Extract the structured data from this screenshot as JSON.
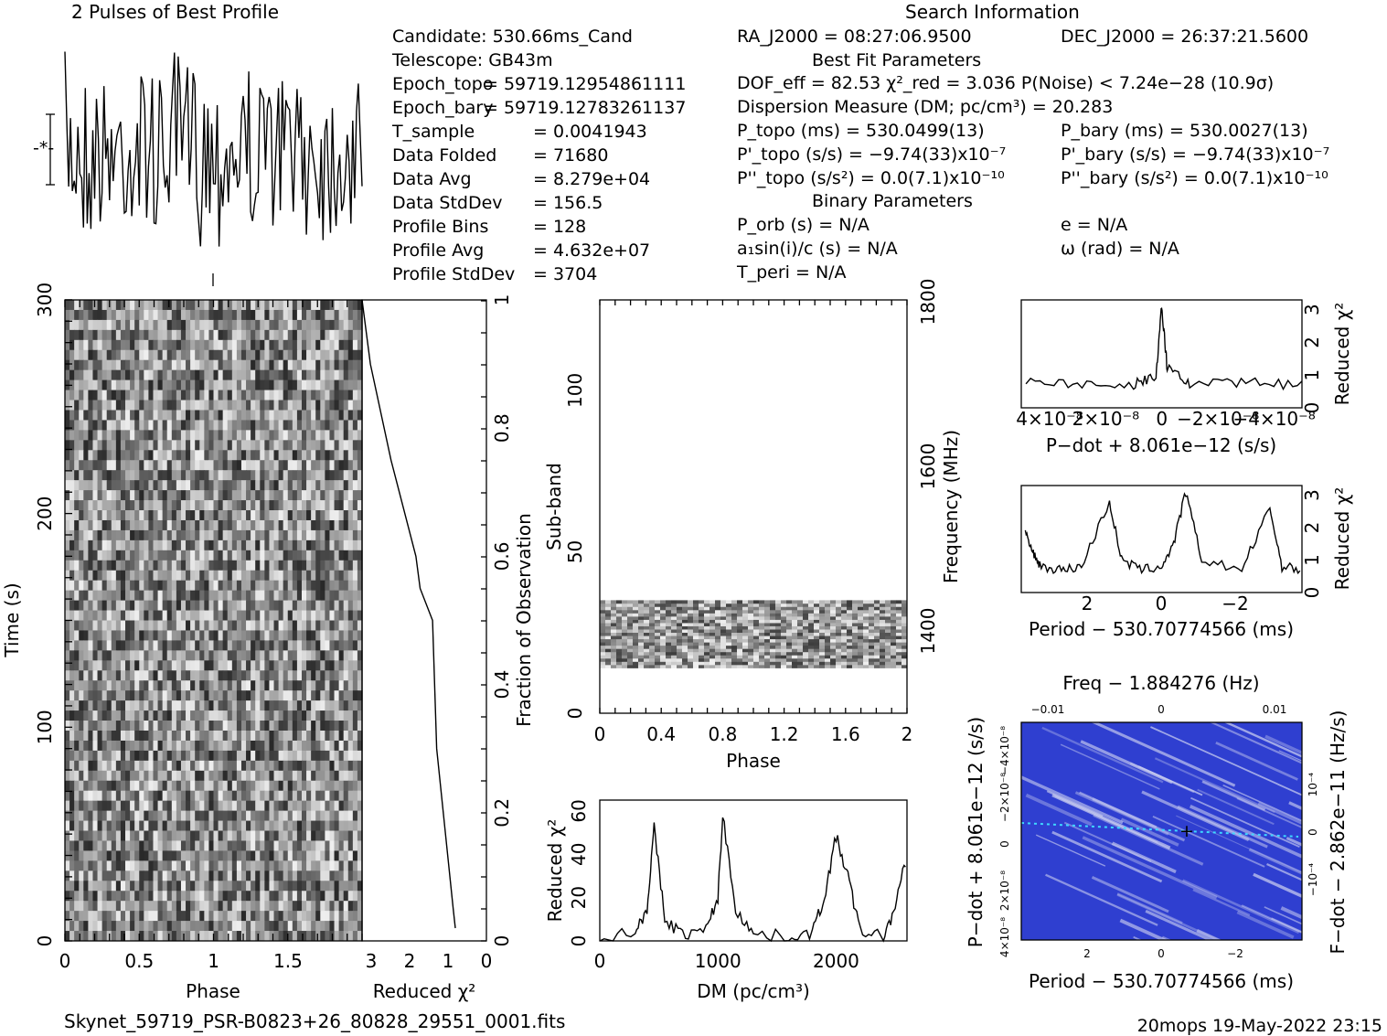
{
  "header": {
    "pulses_title": "2 Pulses of Best Profile",
    "search_title": "Search Information",
    "best_fit_title": "Best Fit Parameters",
    "binary_title": "Binary Parameters"
  },
  "info_left": [
    {
      "label": "Candidate:  530.66ms_Cand",
      "value": ""
    },
    {
      "label": "Telescope:  GB43m",
      "value": ""
    },
    {
      "label": "Epoch_topo",
      "value": "= 59719.12954861111"
    },
    {
      "label": "Epoch_bary",
      "value": "= 59719.12783261137"
    },
    {
      "label": "T_sample",
      "value": "=  0.0041943"
    },
    {
      "label": "Data Folded",
      "value": "=  71680"
    },
    {
      "label": "Data Avg",
      "value": "=  8.279e+04"
    },
    {
      "label": "Data StdDev",
      "value": "=  156.5"
    },
    {
      "label": "Profile Bins",
      "value": "=  128"
    },
    {
      "label": "Profile Avg",
      "value": "=  4.632e+07"
    },
    {
      "label": "Profile StdDev",
      "value": "=  3704"
    }
  ],
  "info_mid": {
    "ra": "RA_J2000 = 08:27:06.9500",
    "dec": "DEC_J2000 = 26:37:21.5600",
    "dof": "DOF_eff = 82.53  χ²_red = 3.036  P(Noise) < 7.24e−28  (10.9σ)",
    "dm": "Dispersion Measure (DM; pc/cm³) = 20.283",
    "p_topo": "P_topo (ms) =  530.0499(13)",
    "p_bary": "P_bary (ms) =  530.0027(13)",
    "pd_topo": "P'_topo (s/s) = −9.74(33)x10⁻⁷",
    "pd_bary": "P'_bary (s/s) = −9.74(33)x10⁻⁷",
    "pdd_topo": "P''_topo (s/s²) = 0.0(7.1)x10⁻¹⁰",
    "pdd_bary": "P''_bary (s/s²) = 0.0(7.1)x10⁻¹⁰",
    "p_orb": "P_orb (s) = N/A",
    "a1": "a₁sin(i)/c (s) = N/A",
    "t_peri": "T_peri = N/A",
    "ecc": "e = N/A",
    "omega": "ω (rad) = N/A"
  },
  "footer": {
    "filename": "Skynet_59719_PSR-B0823+26_80828_29551_0001.fits",
    "stamp": "20mops 19-May-2022 23:15"
  },
  "chart_data": [
    {
      "type": "line",
      "name": "pulse-profile",
      "title": "2 Pulses of Best Profile",
      "xlabel": "",
      "ylabel": "",
      "note": "noisy profile, two pulses shown"
    },
    {
      "type": "heatmap",
      "name": "time-phase",
      "xlabel": "Phase",
      "ylabel": "Time (s)",
      "xlim": [
        0,
        2
      ],
      "ylim": [
        0,
        300
      ],
      "xticks": [
        "0",
        "0.5",
        "1",
        "1.5"
      ],
      "yticks": [
        "0",
        "100",
        "200",
        "300"
      ]
    },
    {
      "type": "line",
      "name": "reduced-chi2-vs-fraction",
      "xlabel": "Reduced χ²",
      "ylabel": "Fraction of Observation",
      "xlim": [
        3,
        0
      ],
      "ylim": [
        0,
        1
      ],
      "xticks": [
        "3",
        "2",
        "1",
        "0"
      ],
      "yticks": [
        "0",
        "0.2",
        "0.4",
        "0.6",
        "0.8",
        "1"
      ],
      "x": [
        0.75,
        0.8,
        1.2,
        1.3,
        1.6,
        1.7,
        2.3,
        2.8,
        3.0
      ],
      "y": [
        0.02,
        0.05,
        0.3,
        0.5,
        0.55,
        0.6,
        0.75,
        0.9,
        1.0
      ]
    },
    {
      "type": "heatmap",
      "name": "subband-phase",
      "xlabel": "Phase",
      "ylabel": "Sub-band",
      "y2label": "Frequency (MHz)",
      "xlim": [
        0,
        2
      ],
      "ylim": [
        0,
        128
      ],
      "xticks": [
        "0",
        "0.4",
        "0.8",
        "1.2",
        "1.6",
        "2"
      ],
      "yticks": [
        "0",
        "50",
        "100"
      ],
      "y2ticks": [
        "1400",
        "1600",
        "1800"
      ],
      "band_subbands": [
        14,
        35
      ]
    },
    {
      "type": "line",
      "name": "dm-curve",
      "xlabel": "DM (pc/cm³)",
      "ylabel": "Reduced χ²",
      "xlim": [
        0,
        2600
      ],
      "ylim": [
        0,
        65
      ],
      "xticks": [
        "0",
        "1000",
        "2000"
      ],
      "yticks": [
        "0",
        "20",
        "40",
        "60"
      ],
      "x": [
        0,
        300,
        400,
        460,
        550,
        700,
        900,
        1000,
        1040,
        1150,
        1300,
        1600,
        1800,
        1900,
        2000,
        2100,
        2200,
        2400,
        2500,
        2600
      ],
      "y": [
        2,
        4,
        15,
        52,
        10,
        3,
        5,
        20,
        58,
        15,
        3,
        2,
        4,
        20,
        48,
        30,
        5,
        2,
        15,
        40
      ]
    },
    {
      "type": "line",
      "name": "pdot-curve",
      "xlabel": "P−dot + 8.061e−12 (s/s)",
      "ylabel": "Reduced χ²",
      "xlim": [
        5e-08,
        -5e-08
      ],
      "ylim": [
        0,
        3.3
      ],
      "xticks": [
        "4×10⁻⁸",
        "2×10⁻⁸",
        "0",
        "−2×10⁻⁸",
        "−4×10⁻⁸"
      ],
      "yticks": [
        "0",
        "1",
        "2",
        "3"
      ],
      "x": [
        -5e-08,
        -3e-08,
        -1e-08,
        -2e-09,
        0,
        2e-09,
        1e-08,
        3e-08,
        5e-08
      ],
      "y": [
        0.7,
        0.8,
        0.75,
        1.2,
        3.1,
        1.0,
        0.7,
        0.75,
        0.8
      ]
    },
    {
      "type": "line",
      "name": "period-curve",
      "xlabel": "Period − 530.70774566 (ms)",
      "ylabel": "Reduced χ²",
      "xlim": [
        3.5,
        -3.5
      ],
      "ylim": [
        0,
        3.3
      ],
      "xticks": [
        "2",
        "0",
        "−2"
      ],
      "yticks": [
        "0",
        "1",
        "2",
        "3"
      ],
      "x": [
        3.4,
        3.2,
        3.0,
        2.5,
        2.0,
        1.3,
        1.0,
        0.5,
        0,
        -0.3,
        -0.6,
        -1.0,
        -2.0,
        -2.7,
        -3.0,
        -3.5
      ],
      "y": [
        1.8,
        1.2,
        0.8,
        0.7,
        0.8,
        2.8,
        1.0,
        0.7,
        0.8,
        1.5,
        3.1,
        1.0,
        0.7,
        2.6,
        0.8,
        0.7
      ]
    },
    {
      "type": "heatmap",
      "name": "p-pdot-plane",
      "xlabel": "Period − 530.70774566 (ms)",
      "ylabel": "P−dot + 8.061e−12 (s/s)",
      "x2label": "Freq − 1.884276 (Hz)",
      "y2label": "F−dot − 2.862e−11 (Hz/s)",
      "xticks": [
        "2",
        "0",
        "−2"
      ],
      "x2ticks": [
        "−0.01",
        "0",
        "0.01"
      ],
      "yticks": [
        "4×10⁻⁸",
        "2×10⁻⁸",
        "0",
        "−2×10⁻⁸",
        "−4×10⁻⁸"
      ],
      "y2ticks": [
        "−10⁻⁴",
        "0",
        "10⁻⁴"
      ],
      "colors": {
        "low": "#2f3fd0",
        "high": "#c8ccf0",
        "peak": "#3fd8ff"
      }
    }
  ]
}
